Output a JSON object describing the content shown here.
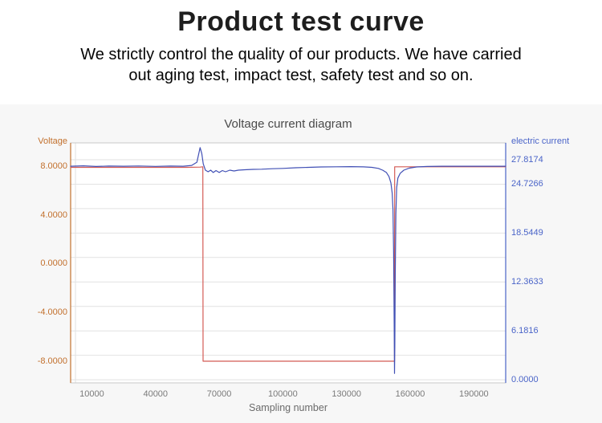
{
  "page": {
    "title": "Product test curve",
    "subtitle": "We strictly control the quality of our products. We have carried\nout aging test, impact test, safety test and so on."
  },
  "chart_data": {
    "type": "line",
    "title": "Voltage current diagram",
    "xlabel": "Sampling number",
    "colors": {
      "panel_bg": "#f7f7f7",
      "plot_bg": "#ffffff",
      "grid": "#e2e2e2",
      "border": "#c8c8c8",
      "x_tick_text": "#7a7a7a"
    },
    "x_axis": {
      "range": [
        0,
        205000
      ],
      "ticks": [
        {
          "v": 10000,
          "label": "10000"
        },
        {
          "v": 40000,
          "label": "40000"
        },
        {
          "v": 70000,
          "label": "70000"
        },
        {
          "v": 100000,
          "label": "100000"
        },
        {
          "v": 130000,
          "label": "130000"
        },
        {
          "v": 160000,
          "label": "160000"
        },
        {
          "v": 190000,
          "label": "190000"
        }
      ]
    },
    "left_axis": {
      "label": "Voltage",
      "color": "#c2702d",
      "range": [
        -9.78,
        9.91
      ],
      "ticks": [
        {
          "v": 8,
          "label": "8.0000"
        },
        {
          "v": 4,
          "label": "4.0000"
        },
        {
          "v": 0,
          "label": "0.0000"
        },
        {
          "v": -4,
          "label": "-4.0000"
        },
        {
          "v": -8,
          "label": "-8.0000"
        }
      ]
    },
    "right_axis": {
      "label": "electric current",
      "color": "#4a64c8",
      "range": [
        -0.4,
        29.95
      ],
      "ticks": [
        {
          "v": 27.8174,
          "label": "27.8174"
        },
        {
          "v": 24.7266,
          "label": "24.7266"
        },
        {
          "v": 18.5449,
          "label": "18.5449"
        },
        {
          "v": 12.3633,
          "label": "12.3633"
        },
        {
          "v": 6.1816,
          "label": "6.1816"
        },
        {
          "v": 0,
          "label": "0.0000"
        }
      ]
    },
    "gridlines": {
      "axis": "right_axis",
      "values": [
        0,
        3.0908,
        6.1816,
        9.2725,
        12.3633,
        15.4541,
        18.5449,
        21.6357,
        24.7266,
        27.8174
      ]
    },
    "series": [
      {
        "name": "voltage",
        "axis": "left",
        "color": "#d45b55",
        "points": [
          [
            0,
            7.9
          ],
          [
            20000,
            7.9
          ],
          [
            40000,
            7.9
          ],
          [
            55000,
            7.9
          ],
          [
            61000,
            7.92
          ],
          [
            62300,
            7.95
          ],
          [
            62400,
            -8
          ],
          [
            100000,
            -8
          ],
          [
            152600,
            -8
          ],
          [
            152700,
            7.95
          ],
          [
            160000,
            7.95
          ],
          [
            180000,
            7.95
          ],
          [
            205000,
            7.95
          ]
        ]
      },
      {
        "name": "electric current",
        "axis": "right",
        "color": "#4150b5",
        "points": [
          [
            0,
            27.0
          ],
          [
            6000,
            27.05
          ],
          [
            12000,
            26.97
          ],
          [
            18000,
            27.02
          ],
          [
            25000,
            27.0
          ],
          [
            32000,
            27.03
          ],
          [
            40000,
            26.98
          ],
          [
            47000,
            27.02
          ],
          [
            53000,
            27.0
          ],
          [
            57000,
            27.1
          ],
          [
            59500,
            27.5
          ],
          [
            61000,
            29.35
          ],
          [
            61800,
            28.6
          ],
          [
            62500,
            27.3
          ],
          [
            63500,
            26.5
          ],
          [
            64800,
            26.3
          ],
          [
            66000,
            26.5
          ],
          [
            67200,
            26.2
          ],
          [
            68500,
            26.45
          ],
          [
            70000,
            26.2
          ],
          [
            71500,
            26.45
          ],
          [
            73000,
            26.3
          ],
          [
            75000,
            26.5
          ],
          [
            77000,
            26.4
          ],
          [
            79000,
            26.5
          ],
          [
            82000,
            26.55
          ],
          [
            86000,
            26.6
          ],
          [
            90000,
            26.62
          ],
          [
            95000,
            26.68
          ],
          [
            100000,
            26.72
          ],
          [
            106000,
            26.8
          ],
          [
            112000,
            26.85
          ],
          [
            118000,
            26.9
          ],
          [
            125000,
            26.93
          ],
          [
            132000,
            26.95
          ],
          [
            138000,
            26.92
          ],
          [
            142000,
            26.85
          ],
          [
            145000,
            26.72
          ],
          [
            147000,
            26.5
          ],
          [
            148800,
            26.2
          ],
          [
            150000,
            25.7
          ],
          [
            150900,
            24.9
          ],
          [
            151500,
            23.6
          ],
          [
            151900,
            21.5
          ],
          [
            152200,
            16.0
          ],
          [
            152450,
            7.0
          ],
          [
            152600,
            0.8
          ],
          [
            152750,
            4.5
          ],
          [
            152950,
            13.0
          ],
          [
            153250,
            21.0
          ],
          [
            153650,
            24.3
          ],
          [
            154200,
            25.5
          ],
          [
            155300,
            26.1
          ],
          [
            157000,
            26.5
          ],
          [
            159500,
            26.75
          ],
          [
            163000,
            26.9
          ],
          [
            168000,
            26.97
          ],
          [
            175000,
            27.0
          ],
          [
            185000,
            27.0
          ],
          [
            195000,
            27.0
          ],
          [
            205000,
            27.0
          ]
        ]
      }
    ]
  }
}
